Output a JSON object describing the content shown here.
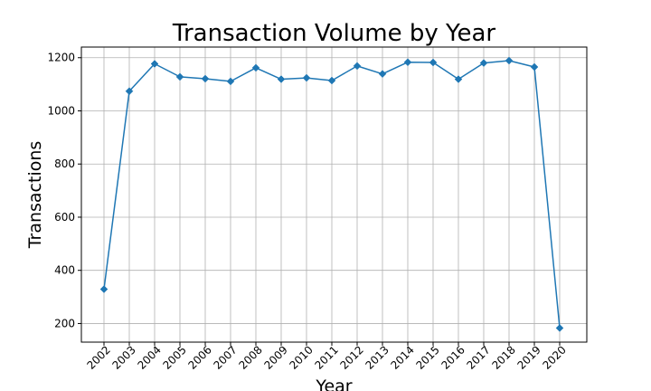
{
  "chart_data": {
    "type": "line",
    "title": "Transaction Volume by Year",
    "xlabel": "Year",
    "ylabel": "Transactions",
    "x": [
      "2002",
      "2003",
      "2004",
      "2005",
      "2006",
      "2007",
      "2008",
      "2009",
      "2010",
      "2011",
      "2012",
      "2013",
      "2014",
      "2015",
      "2016",
      "2017",
      "2018",
      "2019",
      "2020"
    ],
    "series": [
      {
        "values": [
          329,
          1074,
          1177,
          1128,
          1121,
          1111,
          1162,
          1119,
          1124,
          1114,
          1169,
          1139,
          1183,
          1182,
          1119,
          1180,
          1189,
          1165,
          183
        ]
      }
    ],
    "ylim": [
      130,
      1240
    ],
    "yticks": [
      200,
      400,
      600,
      800,
      1000,
      1200
    ],
    "marker": "diamond",
    "grid": true,
    "legend": "none",
    "colors": {
      "line": "#1f77b4",
      "grid": "#b0b0b0"
    }
  }
}
